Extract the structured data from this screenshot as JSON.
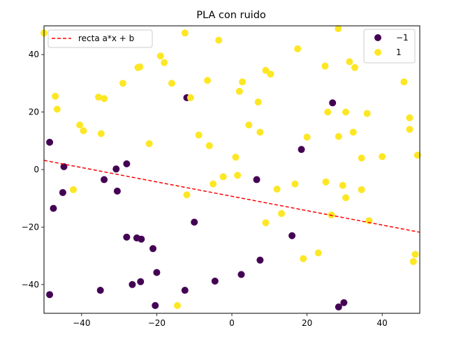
{
  "chart_data": {
    "type": "scatter",
    "title": "PLA con ruido",
    "xlabel": "",
    "ylabel": "",
    "xlim": [
      -50,
      50
    ],
    "ylim": [
      -50,
      50
    ],
    "xticks": [
      -40,
      -20,
      0,
      20,
      40
    ],
    "yticks": [
      -40,
      -20,
      0,
      20,
      40
    ],
    "tick_labels_x": [
      "−40",
      "−20",
      "0",
      "20",
      "40"
    ],
    "tick_labels_y": [
      "−40",
      "−20",
      "0",
      "20",
      "40"
    ],
    "grid": false,
    "line": {
      "label": "recta a*x + b",
      "color": "#ff0000",
      "style": "dashed",
      "x": [
        -50,
        50
      ],
      "y": [
        3.2,
        -21.8
      ]
    },
    "legend_lines": {
      "position": "upper-left",
      "entries": [
        {
          "label": "recta a*x + b",
          "color": "#ff0000"
        }
      ]
    },
    "legend_classes": {
      "position": "upper-right",
      "entries": [
        {
          "label": "−1",
          "color": "#440154"
        },
        {
          "label": "1",
          "color": "#fde725"
        }
      ]
    },
    "series": [
      {
        "name": "−1",
        "color": "#440154",
        "points": [
          [
            -48.5,
            9.5
          ],
          [
            -44.7,
            1.0
          ],
          [
            -45.0,
            -8.0
          ],
          [
            -47.5,
            -13.5
          ],
          [
            -48.5,
            -43.5
          ],
          [
            -35.0,
            -42.0
          ],
          [
            -34.0,
            -3.5
          ],
          [
            -30.8,
            0.2
          ],
          [
            -30.5,
            -7.5
          ],
          [
            -28.0,
            2.0
          ],
          [
            -28.0,
            -23.5
          ],
          [
            -26.5,
            -40.0
          ],
          [
            -25.3,
            -23.8
          ],
          [
            -24.3,
            -39.0
          ],
          [
            -24.1,
            -24.2
          ],
          [
            -21.0,
            -27.5
          ],
          [
            -20.0,
            -35.8
          ],
          [
            -20.4,
            -47.3
          ],
          [
            -12.5,
            -42.0
          ],
          [
            -10.0,
            -18.3
          ],
          [
            -4.5,
            -38.8
          ],
          [
            2.5,
            -36.5
          ],
          [
            6.6,
            -3.5
          ],
          [
            7.5,
            -31.5
          ],
          [
            16.0,
            -23.0
          ],
          [
            18.5,
            7.0
          ],
          [
            26.8,
            23.2
          ],
          [
            28.4,
            -47.8
          ],
          [
            29.8,
            -46.3
          ],
          [
            -12.0,
            25.0
          ]
        ]
      },
      {
        "name": "1",
        "color": "#fde725",
        "points": [
          [
            -50.0,
            47.5
          ],
          [
            -47.0,
            25.5
          ],
          [
            -46.5,
            21.0
          ],
          [
            -40.5,
            15.5
          ],
          [
            -39.5,
            13.5
          ],
          [
            -42.2,
            -7.0
          ],
          [
            -35.5,
            25.2
          ],
          [
            -34.0,
            24.7
          ],
          [
            -34.8,
            12.5
          ],
          [
            -29.0,
            30.0
          ],
          [
            -25.0,
            35.5
          ],
          [
            -24.5,
            35.7
          ],
          [
            -22.0,
            9.0
          ],
          [
            -19.0,
            39.5
          ],
          [
            -18.0,
            37.2
          ],
          [
            -16.0,
            30.0
          ],
          [
            -14.5,
            -47.3
          ],
          [
            -12.5,
            47.5
          ],
          [
            -12.0,
            -8.8
          ],
          [
            -11.0,
            25.0
          ],
          [
            -8.8,
            12.0
          ],
          [
            -6.5,
            31.0
          ],
          [
            -6.0,
            8.3
          ],
          [
            -5.0,
            -5.0
          ],
          [
            -3.5,
            45.0
          ],
          [
            -2.3,
            -2.5
          ],
          [
            1.0,
            4.3
          ],
          [
            1.5,
            -2.0
          ],
          [
            2.0,
            27.2
          ],
          [
            2.8,
            30.5
          ],
          [
            4.5,
            15.5
          ],
          [
            7.0,
            23.5
          ],
          [
            7.5,
            13.0
          ],
          [
            9.0,
            -18.5
          ],
          [
            9.0,
            34.5
          ],
          [
            10.3,
            33.2
          ],
          [
            12.0,
            -6.8
          ],
          [
            13.2,
            -15.3
          ],
          [
            16.8,
            -5.0
          ],
          [
            17.5,
            42.0
          ],
          [
            19.0,
            -31.0
          ],
          [
            20.0,
            11.3
          ],
          [
            23.0,
            -29.0
          ],
          [
            24.8,
            36.0
          ],
          [
            25.0,
            -4.3
          ],
          [
            25.5,
            20.0
          ],
          [
            26.5,
            -15.8
          ],
          [
            28.4,
            11.5
          ],
          [
            28.3,
            49.0
          ],
          [
            29.5,
            -5.5
          ],
          [
            30.3,
            20.0
          ],
          [
            30.3,
            -9.8
          ],
          [
            31.3,
            37.5
          ],
          [
            32.3,
            13.0
          ],
          [
            32.7,
            35.5
          ],
          [
            34.5,
            4.0
          ],
          [
            34.5,
            -7.0
          ],
          [
            36.0,
            19.5
          ],
          [
            36.5,
            -17.8
          ],
          [
            40.0,
            4.5
          ],
          [
            45.8,
            30.5
          ],
          [
            47.3,
            18.0
          ],
          [
            47.3,
            14.0
          ],
          [
            48.3,
            -32.0
          ],
          [
            48.8,
            -29.5
          ],
          [
            49.4,
            5.0
          ]
        ]
      }
    ]
  }
}
